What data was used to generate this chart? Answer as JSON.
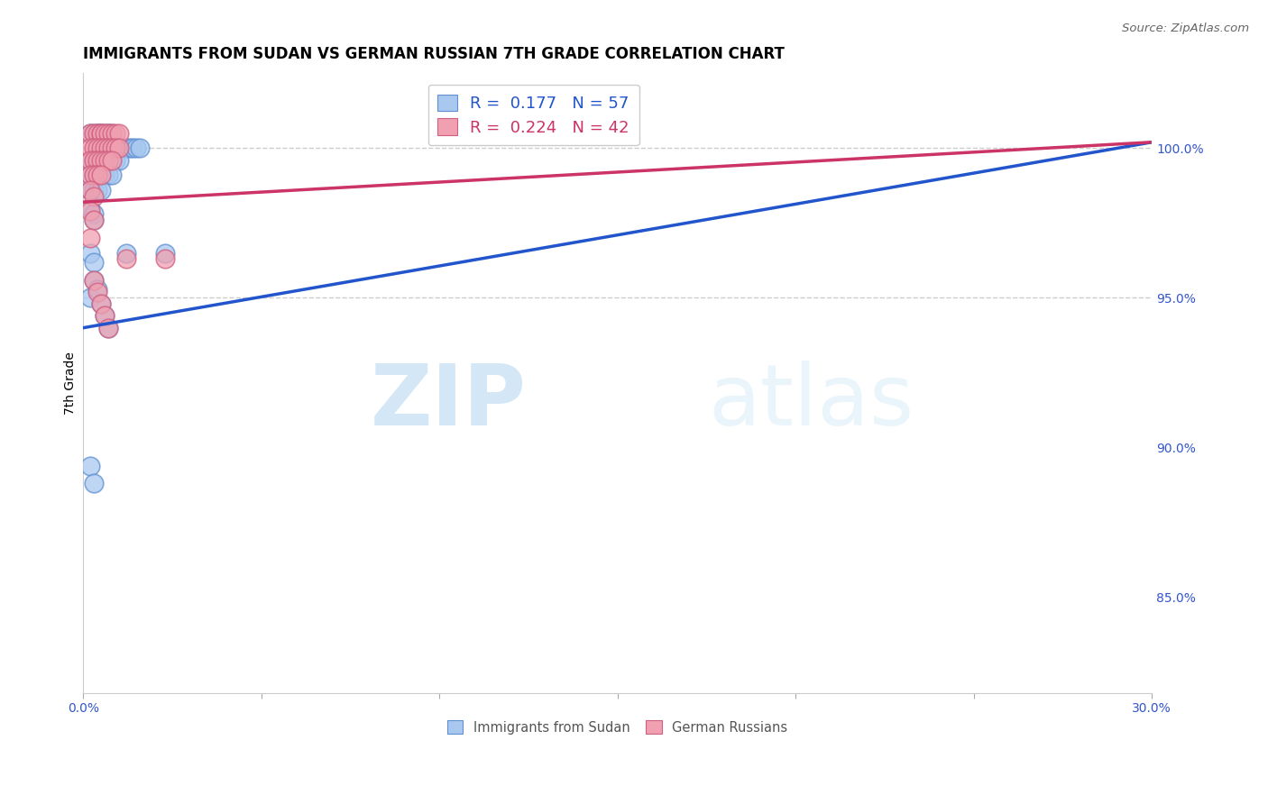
{
  "title": "IMMIGRANTS FROM SUDAN VS GERMAN RUSSIAN 7TH GRADE CORRELATION CHART",
  "source": "Source: ZipAtlas.com",
  "ylabel": "7th Grade",
  "watermark_zip": "ZIP",
  "watermark_atlas": "atlas",
  "xlim": [
    0.0,
    0.3
  ],
  "ylim": [
    0.818,
    1.025
  ],
  "xticks": [
    0.0,
    0.05,
    0.1,
    0.15,
    0.2,
    0.25,
    0.3
  ],
  "xticklabels": [
    "0.0%",
    "",
    "",
    "",
    "",
    "",
    "30.0%"
  ],
  "yticks_right": [
    0.85,
    0.9,
    0.95,
    1.0
  ],
  "ytick_right_labels": [
    "85.0%",
    "90.0%",
    "95.0%",
    "100.0%"
  ],
  "hlines": [
    0.95,
    1.0
  ],
  "r_blue": 0.177,
  "n_blue": 57,
  "r_pink": 0.224,
  "n_pink": 42,
  "blue_color": "#a8c8f0",
  "pink_color": "#f0a0b0",
  "blue_edge_color": "#6090d0",
  "pink_edge_color": "#d06080",
  "blue_line_color": "#2255cc",
  "pink_line_color": "#cc3366",
  "legend_label_blue": "Immigrants from Sudan",
  "legend_label_pink": "German Russians",
  "blue_trendline": [
    [
      0.0,
      0.3
    ],
    [
      0.94,
      1.002
    ]
  ],
  "pink_trendline": [
    [
      0.0,
      0.3
    ],
    [
      0.982,
      1.002
    ]
  ],
  "blue_scatter_x": [
    0.002,
    0.003,
    0.004,
    0.004,
    0.005,
    0.005,
    0.006,
    0.007,
    0.007,
    0.008,
    0.009,
    0.009,
    0.01,
    0.01,
    0.011,
    0.012,
    0.013,
    0.014,
    0.015,
    0.016,
    0.002,
    0.003,
    0.004,
    0.004,
    0.005,
    0.006,
    0.007,
    0.008,
    0.009,
    0.01,
    0.002,
    0.003,
    0.003,
    0.004,
    0.005,
    0.006,
    0.007,
    0.008,
    0.002,
    0.003,
    0.004,
    0.005,
    0.002,
    0.003,
    0.003,
    0.002,
    0.003,
    0.002,
    0.002,
    0.003,
    0.012,
    0.023,
    0.003,
    0.004,
    0.005,
    0.006,
    0.007
  ],
  "blue_scatter_y": [
    1.005,
    1.005,
    1.005,
    1.005,
    1.005,
    1.005,
    1.005,
    1.005,
    1.005,
    1.005,
    1.0,
    1.0,
    1.0,
    1.0,
    1.0,
    1.0,
    1.0,
    1.0,
    1.0,
    1.0,
    0.996,
    0.996,
    0.996,
    0.996,
    0.996,
    0.996,
    0.996,
    0.996,
    0.996,
    0.996,
    0.991,
    0.991,
    0.991,
    0.991,
    0.991,
    0.991,
    0.991,
    0.991,
    0.986,
    0.986,
    0.986,
    0.986,
    0.98,
    0.978,
    0.976,
    0.965,
    0.962,
    0.95,
    0.894,
    0.888,
    0.965,
    0.965,
    0.956,
    0.953,
    0.948,
    0.944,
    0.94
  ],
  "pink_scatter_x": [
    0.002,
    0.003,
    0.004,
    0.005,
    0.005,
    0.006,
    0.007,
    0.008,
    0.009,
    0.01,
    0.002,
    0.003,
    0.004,
    0.005,
    0.006,
    0.007,
    0.008,
    0.009,
    0.01,
    0.002,
    0.003,
    0.004,
    0.005,
    0.006,
    0.007,
    0.008,
    0.002,
    0.003,
    0.004,
    0.005,
    0.002,
    0.003,
    0.002,
    0.003,
    0.002,
    0.012,
    0.023,
    0.003,
    0.004,
    0.005,
    0.006,
    0.007
  ],
  "pink_scatter_y": [
    1.005,
    1.005,
    1.005,
    1.005,
    1.005,
    1.005,
    1.005,
    1.005,
    1.005,
    1.005,
    1.0,
    1.0,
    1.0,
    1.0,
    1.0,
    1.0,
    1.0,
    1.0,
    1.0,
    0.996,
    0.996,
    0.996,
    0.996,
    0.996,
    0.996,
    0.996,
    0.991,
    0.991,
    0.991,
    0.991,
    0.986,
    0.984,
    0.979,
    0.976,
    0.97,
    0.963,
    0.963,
    0.956,
    0.952,
    0.948,
    0.944,
    0.94
  ]
}
